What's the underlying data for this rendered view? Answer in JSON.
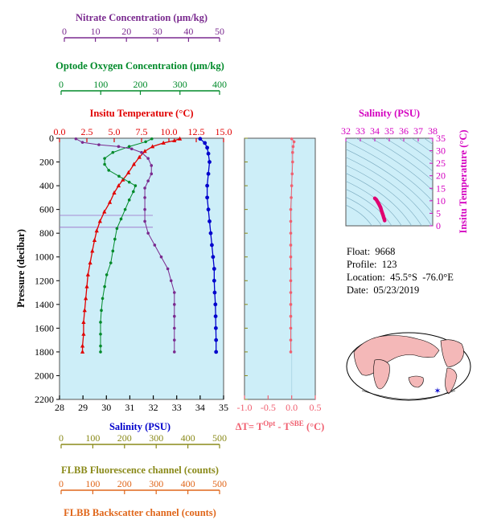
{
  "colors": {
    "panel_bg": "#cdeef8",
    "temperature": "#e00000",
    "salinity": "#0000cc",
    "oxygen": "#008a2a",
    "nitrate": "#7a2a8f",
    "fluorescence": "#8a8a1a",
    "backscatter": "#e0661a",
    "delta_t": "#f06070",
    "ts_axis": "#d400c0",
    "ts_curve": "#e0006f"
  },
  "main_axes": {
    "ylabel": "Pressure (decibar)",
    "yticks": [
      "0",
      "200",
      "400",
      "600",
      "800",
      "1000",
      "1200",
      "1400",
      "1600",
      "1800",
      "2000",
      "2200"
    ],
    "top": [
      {
        "label": "Nitrate Concentration (µm/kg)",
        "ticks": [
          "0",
          "10",
          "20",
          "30",
          "40",
          "50"
        ]
      },
      {
        "label": "Optode Oxygen Concentration (µm/kg)",
        "ticks": [
          "0",
          "100",
          "200",
          "300",
          "400"
        ]
      },
      {
        "label": "Insitu Temperature (°C)",
        "ticks": [
          "0.0",
          "2.5",
          "5.0",
          "7.5",
          "10.0",
          "12.5",
          "15.0"
        ]
      }
    ],
    "bottom": [
      {
        "label": "Salinity (PSU)",
        "ticks": [
          "28",
          "29",
          "30",
          "31",
          "32",
          "33",
          "34",
          "35"
        ]
      },
      {
        "label": "FLBB Fluorescence channel (counts)",
        "ticks": [
          "0",
          "100",
          "200",
          "300",
          "400",
          "500"
        ]
      },
      {
        "label": "FLBB Backscatter channel (counts)",
        "ticks": [
          "0",
          "100",
          "200",
          "300",
          "400",
          "500"
        ]
      }
    ]
  },
  "dt_axes": {
    "xlabel_prefix": "ΔT= T",
    "xlabel_sup1": "Opt",
    "xlabel_mid": " - T",
    "xlabel_sup2": "SBE",
    "xlabel_suffix": " (°C)",
    "xticks": [
      "-1.0",
      "-0.5",
      "0.0",
      "0.5"
    ]
  },
  "ts_axes": {
    "top_label": "Salinity (PSU)",
    "top_ticks": [
      "32",
      "33",
      "34",
      "35",
      "36",
      "37",
      "38"
    ],
    "right_label": "Insitu Temperature (°C)",
    "right_ticks": [
      "0",
      "5",
      "10",
      "15",
      "20",
      "25",
      "30",
      "35"
    ]
  },
  "info": {
    "float": "Float:  9668",
    "profile": "Profile:  123",
    "location": "Location:  45.5°S  -76.0°E",
    "date": "Date:  05/23/2019"
  },
  "chart_data": [
    {
      "type": "line",
      "title": "",
      "y_axis": "Pressure (decibar)",
      "ylim": [
        2200,
        0
      ],
      "grid": false,
      "series": [
        {
          "name": "Insitu Temperature (°C)",
          "xlim": [
            0,
            15
          ],
          "points": [
            [
              11.0,
              5
            ],
            [
              10.5,
              20
            ],
            [
              9.5,
              40
            ],
            [
              8.5,
              70
            ],
            [
              7.8,
              110
            ],
            [
              7.3,
              160
            ],
            [
              6.8,
              220
            ],
            [
              6.3,
              290
            ],
            [
              5.8,
              350
            ],
            [
              5.4,
              400
            ],
            [
              5.0,
              460
            ],
            [
              4.6,
              540
            ],
            [
              4.1,
              620
            ],
            [
              3.7,
              700
            ],
            [
              3.4,
              780
            ],
            [
              3.2,
              860
            ],
            [
              3.0,
              950
            ],
            [
              2.8,
              1050
            ],
            [
              2.6,
              1150
            ],
            [
              2.5,
              1250
            ],
            [
              2.4,
              1350
            ],
            [
              2.3,
              1450
            ],
            [
              2.2,
              1550
            ],
            [
              2.2,
              1650
            ],
            [
              2.1,
              1750
            ],
            [
              2.1,
              1800
            ]
          ]
        },
        {
          "name": "Salinity (PSU)",
          "xlim": [
            28,
            35
          ],
          "points": [
            [
              34.0,
              5
            ],
            [
              34.2,
              40
            ],
            [
              34.3,
              80
            ],
            [
              34.35,
              130
            ],
            [
              34.4,
              200
            ],
            [
              34.35,
              300
            ],
            [
              34.3,
              400
            ],
            [
              34.3,
              500
            ],
            [
              34.35,
              600
            ],
            [
              34.4,
              700
            ],
            [
              34.45,
              800
            ],
            [
              34.5,
              900
            ],
            [
              34.55,
              1000
            ],
            [
              34.6,
              1100
            ],
            [
              34.6,
              1200
            ],
            [
              34.62,
              1300
            ],
            [
              34.65,
              1400
            ],
            [
              34.66,
              1500
            ],
            [
              34.67,
              1600
            ],
            [
              34.68,
              1700
            ],
            [
              34.68,
              1800
            ]
          ]
        },
        {
          "name": "Optode Oxygen Concentration (µm/kg)",
          "xlim": [
            0,
            400
          ],
          "points": [
            [
              225,
              5
            ],
            [
              210,
              30
            ],
            [
              170,
              70
            ],
            [
              130,
              120
            ],
            [
              110,
              170
            ],
            [
              110,
              220
            ],
            [
              120,
              270
            ],
            [
              145,
              320
            ],
            [
              170,
              370
            ],
            [
              185,
              400
            ],
            [
              180,
              450
            ],
            [
              170,
              520
            ],
            [
              160,
              600
            ],
            [
              150,
              680
            ],
            [
              140,
              760
            ],
            [
              135,
              850
            ],
            [
              130,
              950
            ],
            [
              125,
              1050
            ],
            [
              115,
              1150
            ],
            [
              110,
              1250
            ],
            [
              105,
              1350
            ],
            [
              102,
              1450
            ],
            [
              100,
              1550
            ],
            [
              100,
              1650
            ],
            [
              100,
              1750
            ],
            [
              100,
              1800
            ]
          ]
        },
        {
          "name": "Nitrate Concentration (µm/kg)",
          "xlim": [
            0,
            50
          ],
          "points": [
            [
              5,
              5
            ],
            [
              7,
              35
            ],
            [
              12,
              55
            ],
            [
              18,
              70
            ],
            [
              22,
              90
            ],
            [
              25,
              120
            ],
            [
              27,
              170
            ],
            [
              28,
              230
            ],
            [
              28,
              300
            ],
            [
              27,
              360
            ],
            [
              26,
              420
            ],
            [
              26,
              500
            ],
            [
              26,
              600
            ],
            [
              26,
              700
            ],
            [
              27,
              800
            ],
            [
              29,
              900
            ],
            [
              31,
              1000
            ],
            [
              33,
              1100
            ],
            [
              34,
              1200
            ],
            [
              35,
              1300
            ],
            [
              35,
              1400
            ],
            [
              35,
              1500
            ],
            [
              35,
              1600
            ],
            [
              35,
              1700
            ],
            [
              35,
              1800
            ]
          ]
        }
      ]
    },
    {
      "type": "line",
      "title": "",
      "xlabel": "ΔT= T Opt - T SBE (°C)",
      "xlim": [
        -1.0,
        0.5
      ],
      "ylim": [
        2200,
        0
      ],
      "grid": false,
      "series": [
        {
          "points": [
            [
              0.0,
              5
            ],
            [
              0.05,
              30
            ],
            [
              0.03,
              70
            ],
            [
              0.02,
              120
            ],
            [
              0.02,
              200
            ],
            [
              0.01,
              300
            ],
            [
              0.0,
              400
            ],
            [
              -0.01,
              500
            ],
            [
              -0.02,
              600
            ],
            [
              -0.02,
              700
            ],
            [
              -0.02,
              800
            ],
            [
              -0.02,
              900
            ],
            [
              -0.02,
              1000
            ],
            [
              -0.02,
              1100
            ],
            [
              -0.02,
              1200
            ],
            [
              -0.02,
              1300
            ],
            [
              -0.02,
              1400
            ],
            [
              -0.02,
              1500
            ],
            [
              -0.02,
              1600
            ],
            [
              -0.02,
              1700
            ],
            [
              -0.02,
              1800
            ]
          ]
        }
      ]
    },
    {
      "type": "line",
      "title": "",
      "xlabel": "Salinity (PSU)",
      "ylabel": "Insitu Temperature (°C)",
      "xlim": [
        32,
        38
      ],
      "ylim": [
        0,
        35
      ],
      "grid": false,
      "series": [
        {
          "points": [
            [
              34.0,
              11.0
            ],
            [
              34.1,
              10.5
            ],
            [
              34.2,
              9.5
            ],
            [
              34.3,
              8.5
            ],
            [
              34.4,
              7.3
            ],
            [
              34.45,
              6.3
            ],
            [
              34.5,
              5.4
            ],
            [
              34.55,
              4.6
            ],
            [
              34.6,
              3.7
            ],
            [
              34.62,
              3.2
            ],
            [
              34.65,
              2.8
            ],
            [
              34.68,
              2.1
            ]
          ]
        }
      ]
    }
  ]
}
